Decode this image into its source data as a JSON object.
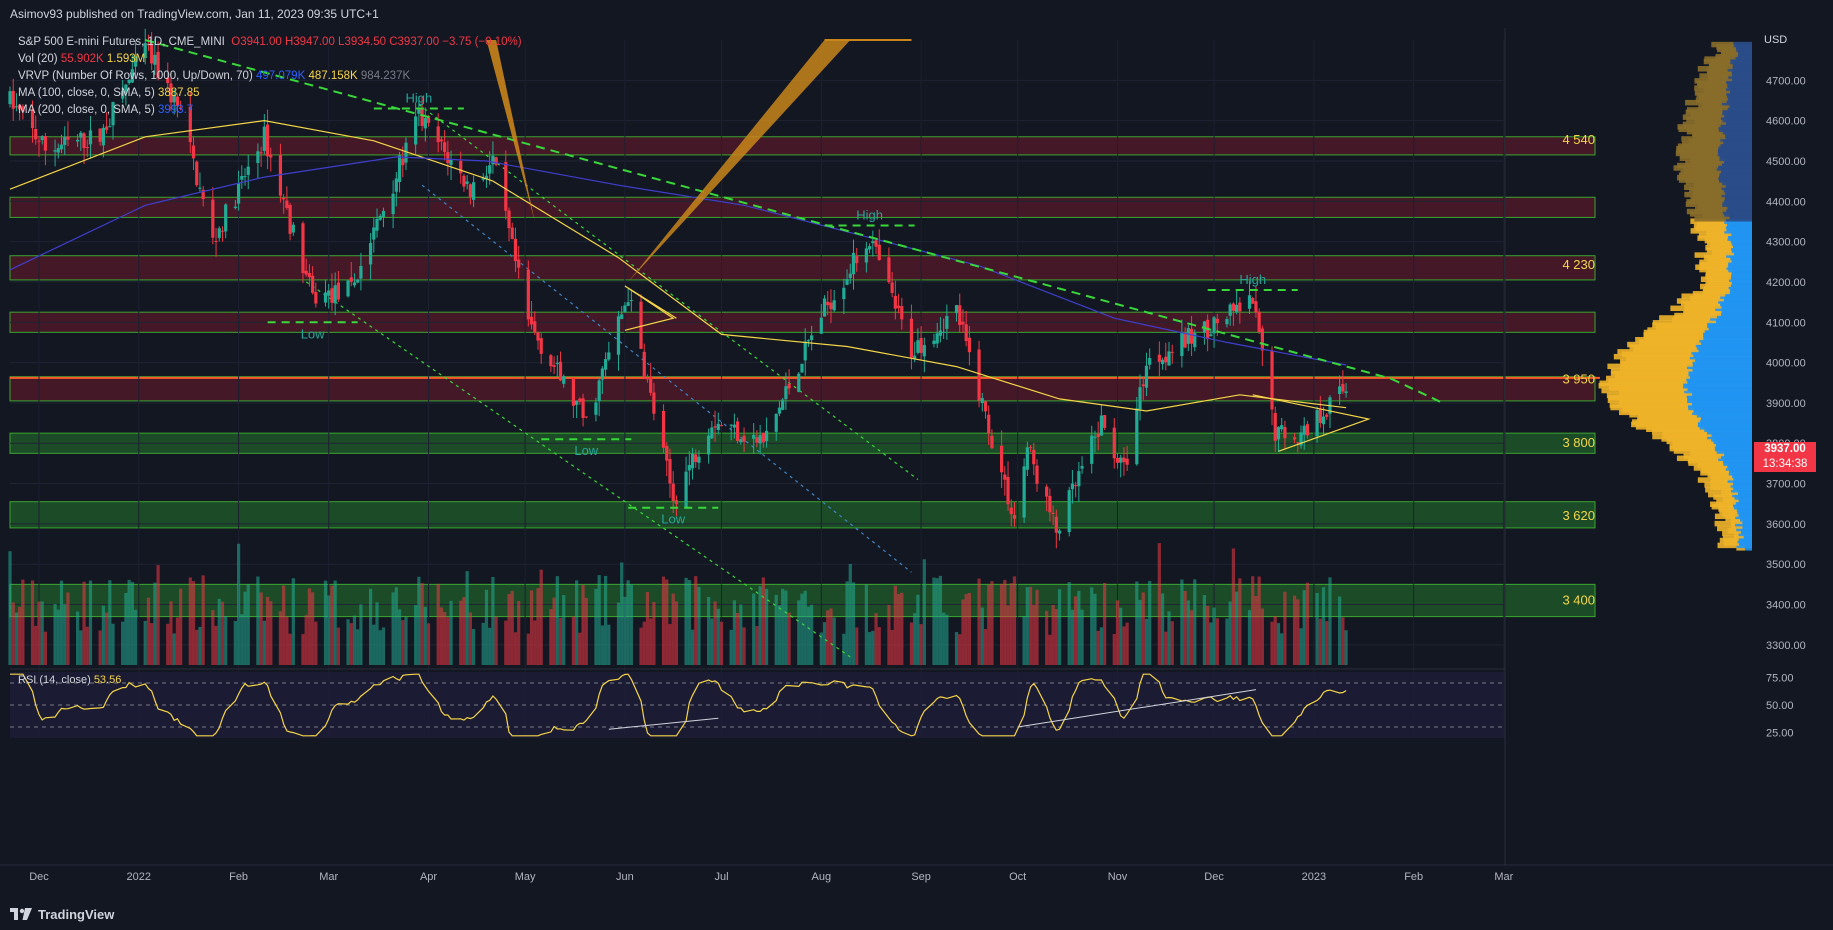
{
  "header": {
    "text": "Asimov93 published on TradingView.com, Jan 11, 2023 09:35 UTC+1"
  },
  "legend": {
    "symbol": "S&P 500 E-mini Futures, 1D, CME_MINI",
    "ohlc": {
      "o": "O3941.00",
      "h": "H3947.00",
      "l": "L3934.50",
      "c": "C3937.00",
      "chg": "−3.75 (−0.10%)"
    },
    "vol": {
      "label": "Vol (20)",
      "v1": "55.902K",
      "v2": "1.593M"
    },
    "vrvp": {
      "label": "VRVP (Number Of Rows, 1000, Up/Down, 70)",
      "v1": "497.079K",
      "v2": "487.158K",
      "v3": "984.237K"
    },
    "ma100": {
      "label": "MA (100, close, 0, SMA, 5)",
      "value": "3887.85"
    },
    "ma200": {
      "label": "MA (200, close, 0, SMA, 5)",
      "value": "3993.7"
    },
    "rsi": {
      "label": "RSI (14, close)",
      "value": "53.56"
    }
  },
  "price_tag": {
    "value": "3937.00",
    "time": "13:34:38"
  },
  "currency": "USD",
  "zone_labels": [
    "4 540",
    "4 230",
    "3 950",
    "3 800",
    "3 620",
    "3 400"
  ],
  "annotations": {
    "high": "High",
    "low": "Low"
  },
  "footer": {
    "brand": "TradingView"
  },
  "colors": {
    "bg": "#131722",
    "up": "#22ab94",
    "down": "#f23645",
    "ma100": "#f5d547",
    "ma200": "#3f3fcf",
    "trend": "#39d83a",
    "zone_green": "#1f5f2a",
    "zone_red": "#5a1a2a"
  },
  "chart_data": {
    "type": "candlestick",
    "ylim": [
      3250,
      4800
    ],
    "y_ticks": [
      3300,
      3400,
      3500,
      3600,
      3700,
      3800,
      3900,
      4000,
      4100,
      4200,
      4300,
      4400,
      4500,
      4600,
      4700
    ],
    "y_tick_labels": [
      "3300.00",
      "3400.00",
      "3500.00",
      "3600.00",
      "3700.00",
      "3800.00",
      "3900.00",
      "4000.00",
      "4100.00",
      "4200.00",
      "4300.00",
      "4400.00",
      "4500.00",
      "4600.00",
      "4700.00"
    ],
    "x_tick_labels": [
      "Dec",
      "2022",
      "Feb",
      "Mar",
      "Apr",
      "May",
      "Jun",
      "Jul",
      "Aug",
      "Sep",
      "Oct",
      "Nov",
      "Dec",
      "2023",
      "Feb",
      "Mar"
    ],
    "trend": [
      {
        "date": "2021-11-22",
        "v": 4650
      },
      {
        "date": "2021-12-03",
        "v": 4530
      },
      {
        "date": "2021-12-20",
        "v": 4560
      },
      {
        "date": "2022-01-03",
        "v": 4780
      },
      {
        "date": "2022-01-14",
        "v": 4620
      },
      {
        "date": "2022-01-24",
        "v": 4300
      },
      {
        "date": "2022-02-09",
        "v": 4560
      },
      {
        "date": "2022-02-24",
        "v": 4160
      },
      {
        "date": "2022-03-08",
        "v": 4180
      },
      {
        "date": "2022-03-29",
        "v": 4610
      },
      {
        "date": "2022-04-14",
        "v": 4430
      },
      {
        "date": "2022-04-21",
        "v": 4500
      },
      {
        "date": "2022-05-02",
        "v": 4100
      },
      {
        "date": "2022-05-20",
        "v": 3850
      },
      {
        "date": "2022-06-02",
        "v": 4170
      },
      {
        "date": "2022-06-16",
        "v": 3660
      },
      {
        "date": "2022-06-28",
        "v": 3860
      },
      {
        "date": "2022-07-14",
        "v": 3800
      },
      {
        "date": "2022-08-01",
        "v": 4120
      },
      {
        "date": "2022-08-16",
        "v": 4310
      },
      {
        "date": "2022-08-29",
        "v": 4030
      },
      {
        "date": "2022-09-12",
        "v": 4130
      },
      {
        "date": "2022-09-30",
        "v": 3610
      },
      {
        "date": "2022-10-04",
        "v": 3790
      },
      {
        "date": "2022-10-13",
        "v": 3580
      },
      {
        "date": "2022-10-27",
        "v": 3850
      },
      {
        "date": "2022-11-03",
        "v": 3730
      },
      {
        "date": "2022-11-10",
        "v": 4000
      },
      {
        "date": "2022-11-30",
        "v": 4090
      },
      {
        "date": "2022-12-13",
        "v": 4150
      },
      {
        "date": "2022-12-20",
        "v": 3830
      },
      {
        "date": "2022-12-28",
        "v": 3820
      },
      {
        "date": "2023-01-06",
        "v": 3900
      },
      {
        "date": "2023-01-11",
        "v": 3937
      }
    ],
    "ma100": [
      {
        "date": "2021-11-22",
        "v": 4430
      },
      {
        "date": "2022-01-03",
        "v": 4560
      },
      {
        "date": "2022-02-09",
        "v": 4600
      },
      {
        "date": "2022-03-15",
        "v": 4550
      },
      {
        "date": "2022-04-21",
        "v": 4450
      },
      {
        "date": "2022-05-30",
        "v": 4260
      },
      {
        "date": "2022-07-01",
        "v": 4070
      },
      {
        "date": "2022-08-09",
        "v": 4040
      },
      {
        "date": "2022-09-12",
        "v": 3990
      },
      {
        "date": "2022-10-14",
        "v": 3910
      },
      {
        "date": "2022-11-10",
        "v": 3880
      },
      {
        "date": "2022-12-09",
        "v": 3920
      },
      {
        "date": "2023-01-11",
        "v": 3888
      }
    ],
    "ma200": [
      {
        "date": "2021-11-22",
        "v": 4230
      },
      {
        "date": "2022-01-03",
        "v": 4390
      },
      {
        "date": "2022-02-09",
        "v": 4460
      },
      {
        "date": "2022-03-22",
        "v": 4510
      },
      {
        "date": "2022-04-19",
        "v": 4500
      },
      {
        "date": "2022-05-30",
        "v": 4440
      },
      {
        "date": "2022-07-08",
        "v": 4390
      },
      {
        "date": "2022-08-16",
        "v": 4310
      },
      {
        "date": "2022-09-19",
        "v": 4240
      },
      {
        "date": "2022-10-31",
        "v": 4110
      },
      {
        "date": "2022-12-05",
        "v": 4050
      },
      {
        "date": "2023-01-11",
        "v": 3994
      }
    ],
    "rsi": {
      "levels": [
        30,
        50,
        70
      ],
      "tick_labels": [
        "75.00",
        "50.00",
        "25.00"
      ],
      "last": 53.56
    }
  }
}
